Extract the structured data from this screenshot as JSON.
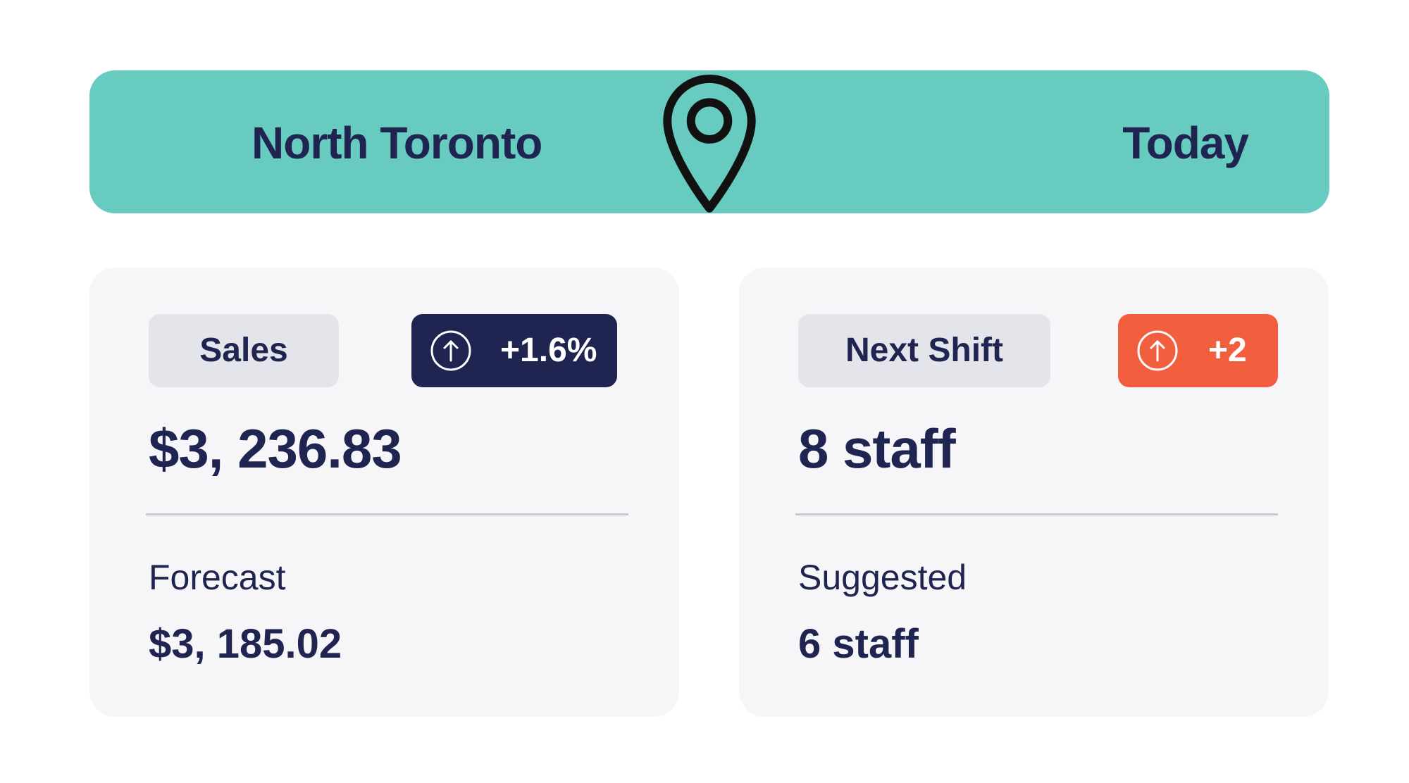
{
  "header": {
    "location_icon": "map-pin-icon",
    "location": "North Toronto",
    "period": "Today",
    "color": "#67cbbf"
  },
  "cards": [
    {
      "label": "Sales",
      "change_icon": "arrow-up-circle-icon",
      "change": "+1.6%",
      "change_color": "#1f2550",
      "value": "$3, 236.83",
      "sub_label": "Forecast",
      "sub_value": "$3, 185.02"
    },
    {
      "label": "Next Shift",
      "change_icon": "arrow-up-circle-icon",
      "change": "+2",
      "change_color": "#f15f3f",
      "value": "8 staff",
      "sub_label": "Suggested",
      "sub_value": "6 staff"
    }
  ],
  "colors": {
    "text": "#1f2550",
    "card_bg": "#f6f6f8",
    "pill_bg": "#e4e5ea"
  }
}
